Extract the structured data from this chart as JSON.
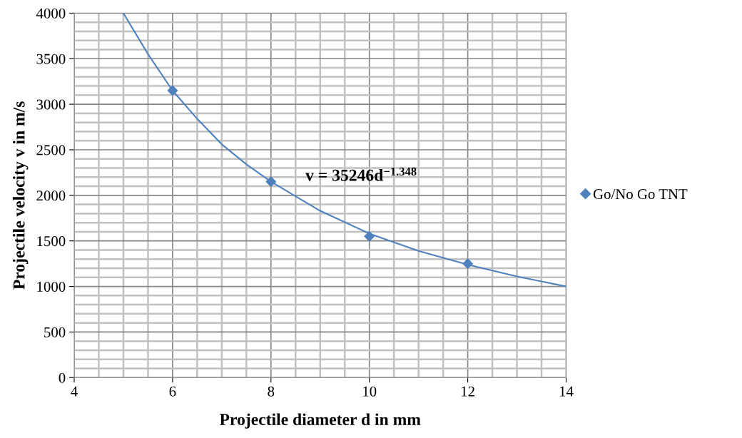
{
  "chart_data": {
    "type": "scatter",
    "xlabel": "Projectile diameter d in mm",
    "ylabel": "Projectile velocity v in m/s",
    "series": [
      {
        "name": "Go/No Go TNT",
        "color": "#4f81bd",
        "marker": "diamond",
        "x": [
          6,
          8,
          10,
          12
        ],
        "values": [
          3150,
          2150,
          1550,
          1250
        ]
      },
      {
        "type": "line",
        "color": "#4f81bd",
        "marker": "none",
        "x": [
          5.0,
          5.5,
          6,
          6.5,
          7,
          7.5,
          8,
          9,
          10,
          11,
          12,
          13,
          14
        ],
        "values": [
          4000,
          3550,
          3150,
          2840,
          2560,
          2340,
          2150,
          1830,
          1580,
          1390,
          1240,
          1110,
          1000
        ]
      }
    ],
    "annotations": [
      "v = 35246d$^{−1.348}$"
    ],
    "xlim": [
      4,
      14
    ],
    "xticks": [
      4,
      6,
      8,
      10,
      12,
      14
    ],
    "ylim": [
      0,
      4000
    ],
    "yticks": [
      0,
      500,
      1000,
      1500,
      2000,
      2500,
      3000,
      3500,
      4000
    ],
    "grid": true,
    "legend": "right"
  }
}
